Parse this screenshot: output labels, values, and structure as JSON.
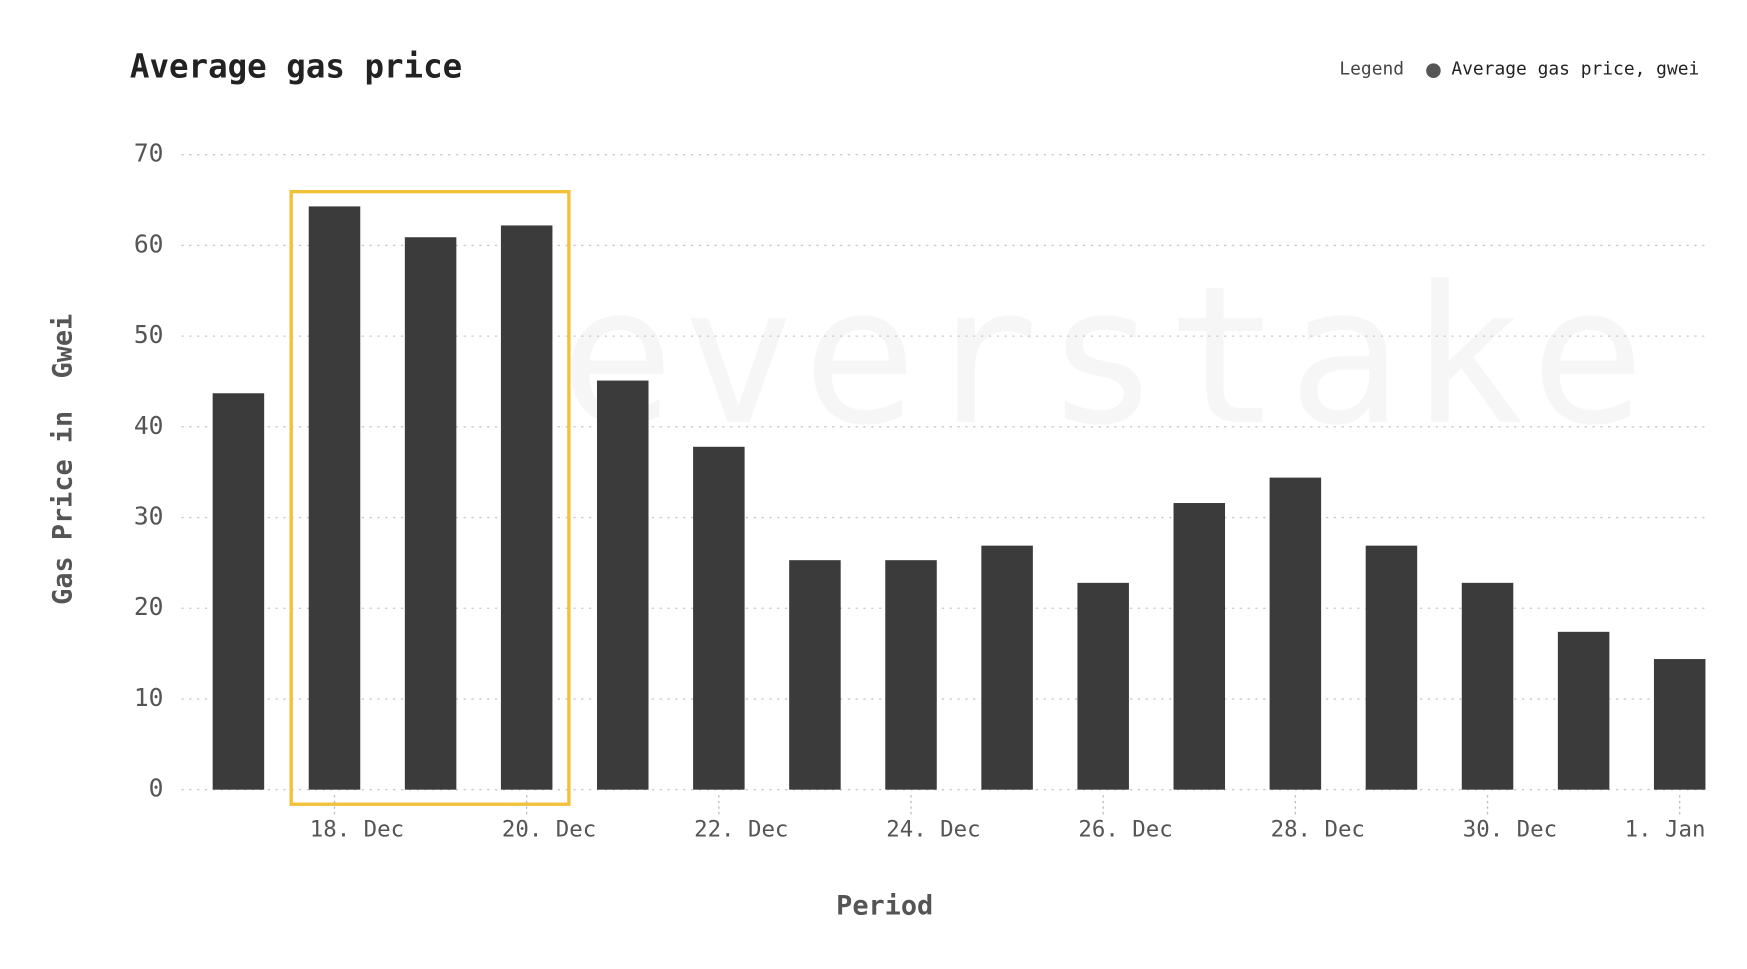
{
  "chart_data": {
    "type": "bar",
    "title": "Average gas price",
    "legend_title": "Legend",
    "watermark": "everstake",
    "x_label": "Period",
    "y_label": "Gas Price in  Gwei",
    "categories": [
      null,
      "18. Dec",
      null,
      "20. Dec",
      null,
      "22. Dec",
      null,
      "24. Dec",
      null,
      "26. Dec",
      null,
      "28. Dec",
      null,
      "30. Dec",
      null,
      "1. Jan"
    ],
    "series": [
      {
        "name": "Average gas price, gwei",
        "color": "#3b3b3b",
        "values": [
          43.7,
          64.3,
          60.9,
          62.2,
          45.1,
          37.8,
          25.3,
          25.3,
          26.9,
          22.8,
          31.6,
          34.4,
          26.9,
          22.8,
          17.4,
          14.4
        ]
      }
    ],
    "ylim": [
      0,
      70
    ],
    "yticks": [
      0,
      10,
      20,
      30,
      40,
      50,
      60,
      70
    ],
    "grid": true,
    "legend_position": "top-right"
  }
}
